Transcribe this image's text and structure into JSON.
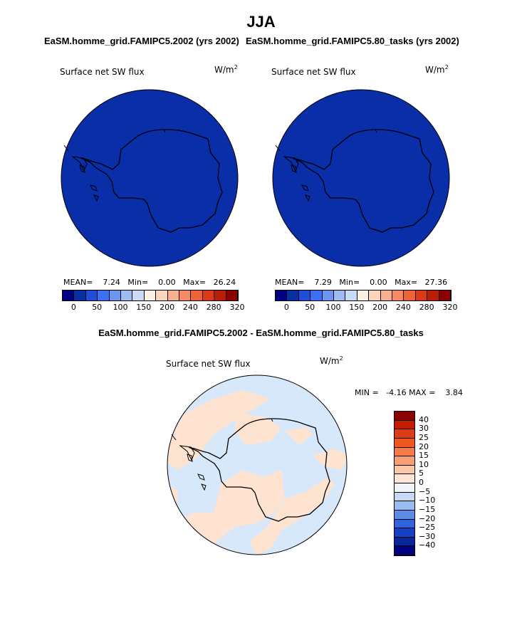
{
  "figure_title": "JJA",
  "panels": [
    {
      "case_title": "EaSM.homme_grid.FAMIPC5.2002 (yrs 2002)",
      "variable": "Surface net SW flux",
      "units": "W/m",
      "units_exp": "2",
      "stats": {
        "mean_label": "MEAN=",
        "mean": "7.24",
        "min_label": "Min=",
        "min": "0.00",
        "max_label": "Max=",
        "max": "26.24"
      }
    },
    {
      "case_title": "EaSM.homme_grid.FAMIPC5.80_tasks (yrs 2002)",
      "variable": "Surface net SW flux",
      "units": "W/m",
      "units_exp": "2",
      "stats": {
        "mean_label": "MEAN=",
        "mean": "7.29",
        "min_label": "Min=",
        "min": "0.00",
        "max_label": "Max=",
        "max": "27.36"
      }
    }
  ],
  "colorbar": {
    "ticks": [
      "0",
      "50",
      "100",
      "150",
      "200",
      "240",
      "280",
      "320"
    ],
    "colors": [
      "#000080",
      "#0a2fa0",
      "#1f4fd6",
      "#3d6ff2",
      "#6a96ef",
      "#9dbcf2",
      "#c9dcf6",
      "#fdf1e6",
      "#fcd3bb",
      "#f9b08f",
      "#f68a63",
      "#ef6437",
      "#dc3a17",
      "#b91d06",
      "#8b0000"
    ]
  },
  "diff": {
    "title": "EaSM.homme_grid.FAMIPC5.2002 - EaSM.homme_grid.FAMIPC5.80_tasks",
    "variable": "Surface net SW flux",
    "units": "W/m",
    "units_exp": "2",
    "stats": {
      "min_label": "MIN =",
      "min": "-4.16",
      "max_label": "MAX =",
      "max": "3.84"
    },
    "legend_labels": [
      "40",
      "30",
      "25",
      "20",
      "15",
      "10",
      "5",
      "0",
      "−5",
      "−10",
      "−15",
      "−20",
      "−25",
      "−30",
      "−40"
    ],
    "legend_colors": [
      "#8b0000",
      "#c21c04",
      "#e03b14",
      "#f2561f",
      "#f77a4b",
      "#f99d74",
      "#fbc6a6",
      "#fde6d4",
      "#f2f4fb",
      "#c6daf5",
      "#99bdf0",
      "#5c8cea",
      "#2f63df",
      "#163fc3",
      "#06269a",
      "#000080"
    ]
  },
  "colors": {
    "ocean_fill": "#0a2da8",
    "diff_ocean": "#d7e8fa",
    "diff_land_positive": "#fde3d0",
    "coastline": "#000000"
  }
}
